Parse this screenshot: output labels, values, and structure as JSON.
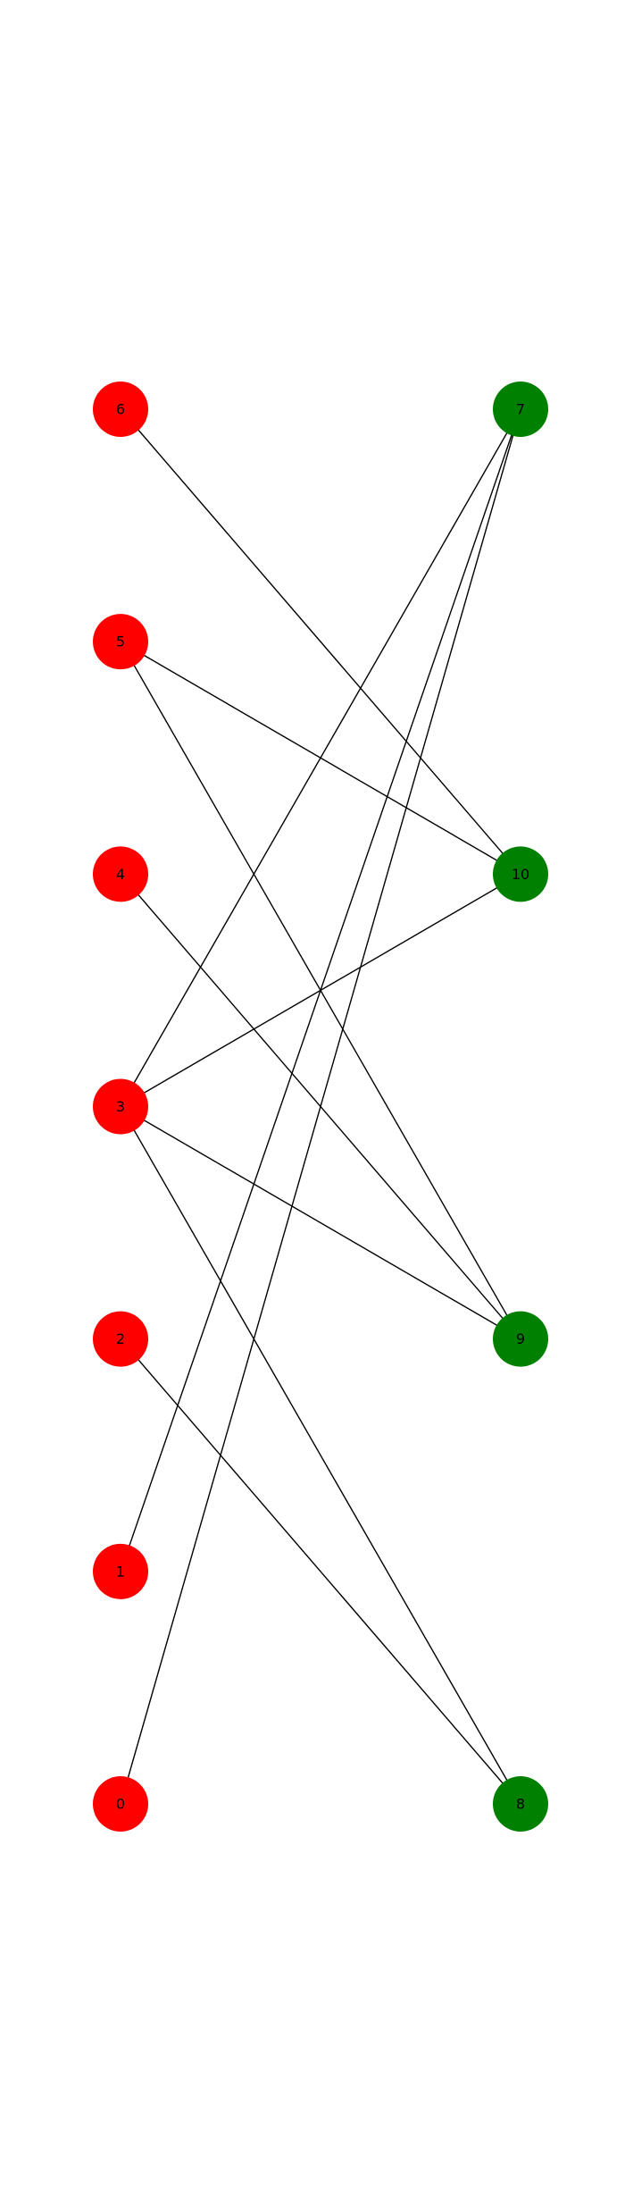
{
  "graph": {
    "colors": {
      "left_partition": "#ff0000",
      "right_partition": "#008000",
      "edge": "#000000",
      "label": "#000000",
      "background": "#ffffff"
    },
    "left_nodes": [
      "6",
      "5",
      "4",
      "3",
      "2",
      "1",
      "0"
    ],
    "right_nodes": [
      "7",
      "10",
      "9",
      "8"
    ],
    "edges": [
      [
        "6",
        "10"
      ],
      [
        "5",
        "10"
      ],
      [
        "5",
        "9"
      ],
      [
        "4",
        "9"
      ],
      [
        "3",
        "7"
      ],
      [
        "3",
        "10"
      ],
      [
        "3",
        "9"
      ],
      [
        "3",
        "8"
      ],
      [
        "2",
        "8"
      ],
      [
        "1",
        "7"
      ],
      [
        "0",
        "7"
      ]
    ]
  }
}
